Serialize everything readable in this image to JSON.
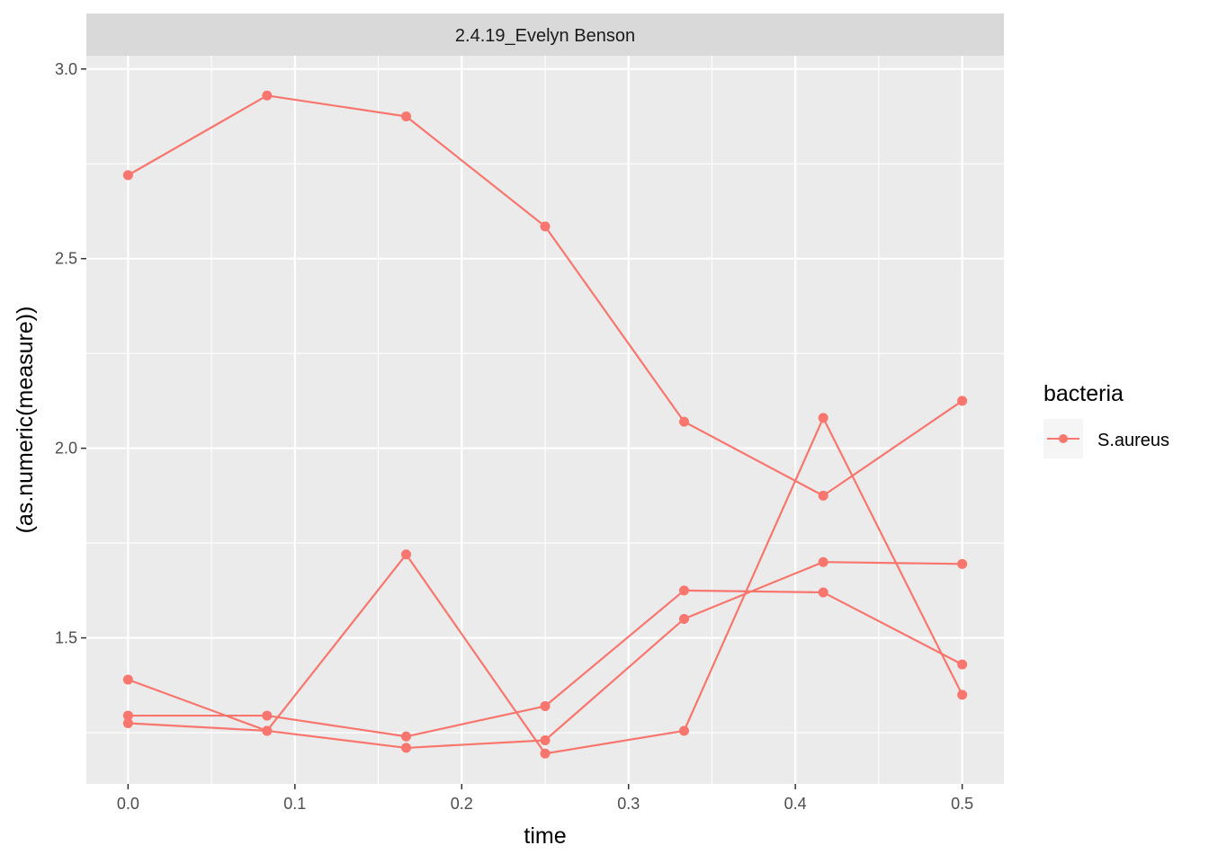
{
  "chart_data": {
    "type": "line",
    "facet_label": "2.4.19_Evelyn Benson",
    "xlabel": "time",
    "ylabel": "(as.numeric(measure))",
    "xlim": [
      -0.025,
      0.525
    ],
    "ylim": [
      1.115,
      3.035
    ],
    "x_ticks": [
      0.0,
      0.1,
      0.2,
      0.3,
      0.4,
      0.5
    ],
    "x_tick_labels": [
      "0.0",
      "0.1",
      "0.2",
      "0.3",
      "0.4",
      "0.5"
    ],
    "y_ticks": [
      1.5,
      2.0,
      2.5,
      3.0
    ],
    "y_tick_labels": [
      "1.5",
      "2.0",
      "2.5",
      "3.0"
    ],
    "grid": true,
    "legend": {
      "title": "bacteria",
      "entries": [
        "S.aureus"
      ],
      "position": "right"
    },
    "colors": {
      "series": "#F8766D",
      "panel_bg": "#EBEBEB",
      "strip_bg": "#D9D9D9",
      "grid_major": "#FFFFFF",
      "grid_minor": "#F5F5F5",
      "axis_text": "#4D4D4D",
      "title_text": "#000000",
      "strip_text": "#1A1A1A"
    },
    "x": [
      0.0,
      0.0833,
      0.1667,
      0.25,
      0.3333,
      0.4167,
      0.5
    ],
    "series": [
      {
        "values": [
          2.72,
          2.93,
          2.875,
          2.585,
          2.07,
          1.875,
          2.125
        ]
      },
      {
        "values": [
          1.39,
          1.255,
          1.72,
          1.195,
          1.255,
          2.08,
          1.35
        ]
      },
      {
        "values": [
          1.275,
          1.255,
          1.21,
          1.23,
          1.55,
          1.7,
          1.695
        ]
      },
      {
        "values": [
          1.295,
          1.295,
          1.24,
          1.32,
          1.625,
          1.62,
          1.43
        ]
      }
    ]
  }
}
